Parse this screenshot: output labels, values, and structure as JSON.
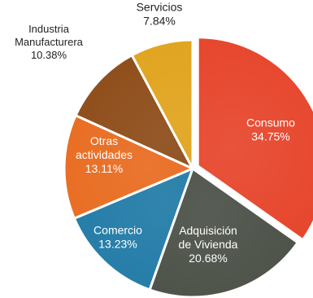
{
  "chart_data": {
    "type": "pie",
    "title": "",
    "legend": "none",
    "unit": "%",
    "slices": [
      {
        "name": "Consumo",
        "value": 34.75,
        "value_label": "34.75%",
        "color": "#e6442a",
        "label_lines": [
          "Consumo"
        ],
        "label_color": "#ffffff"
      },
      {
        "name": "Adquisición de Vivienda",
        "value": 20.68,
        "value_label": "20.68%",
        "color": "#4a4f46",
        "label_lines": [
          "Adquisición",
          "de Vivienda"
        ],
        "label_color": "#ffffff"
      },
      {
        "name": "Comercio",
        "value": 13.23,
        "value_label": "13.23%",
        "color": "#1f7aa6",
        "label_lines": [
          "Comercio"
        ],
        "label_color": "#ffffff"
      },
      {
        "name": "Otras actividades",
        "value": 13.11,
        "value_label": "13.11%",
        "color": "#e86a1e",
        "label_lines": [
          "Otras",
          "actividades"
        ],
        "label_color": "#ffffff"
      },
      {
        "name": "Industria Manufacturera",
        "value": 10.38,
        "value_label": "10.38%",
        "color": "#8c4a16",
        "label_lines": [
          "Industria",
          "Manufacturera"
        ],
        "label_color": "#222222"
      },
      {
        "name": "Servicios",
        "value": 7.84,
        "value_label": "7.84%",
        "color": "#e0a21a",
        "label_lines": [
          "Servicios"
        ],
        "label_color": "#222222"
      }
    ]
  }
}
